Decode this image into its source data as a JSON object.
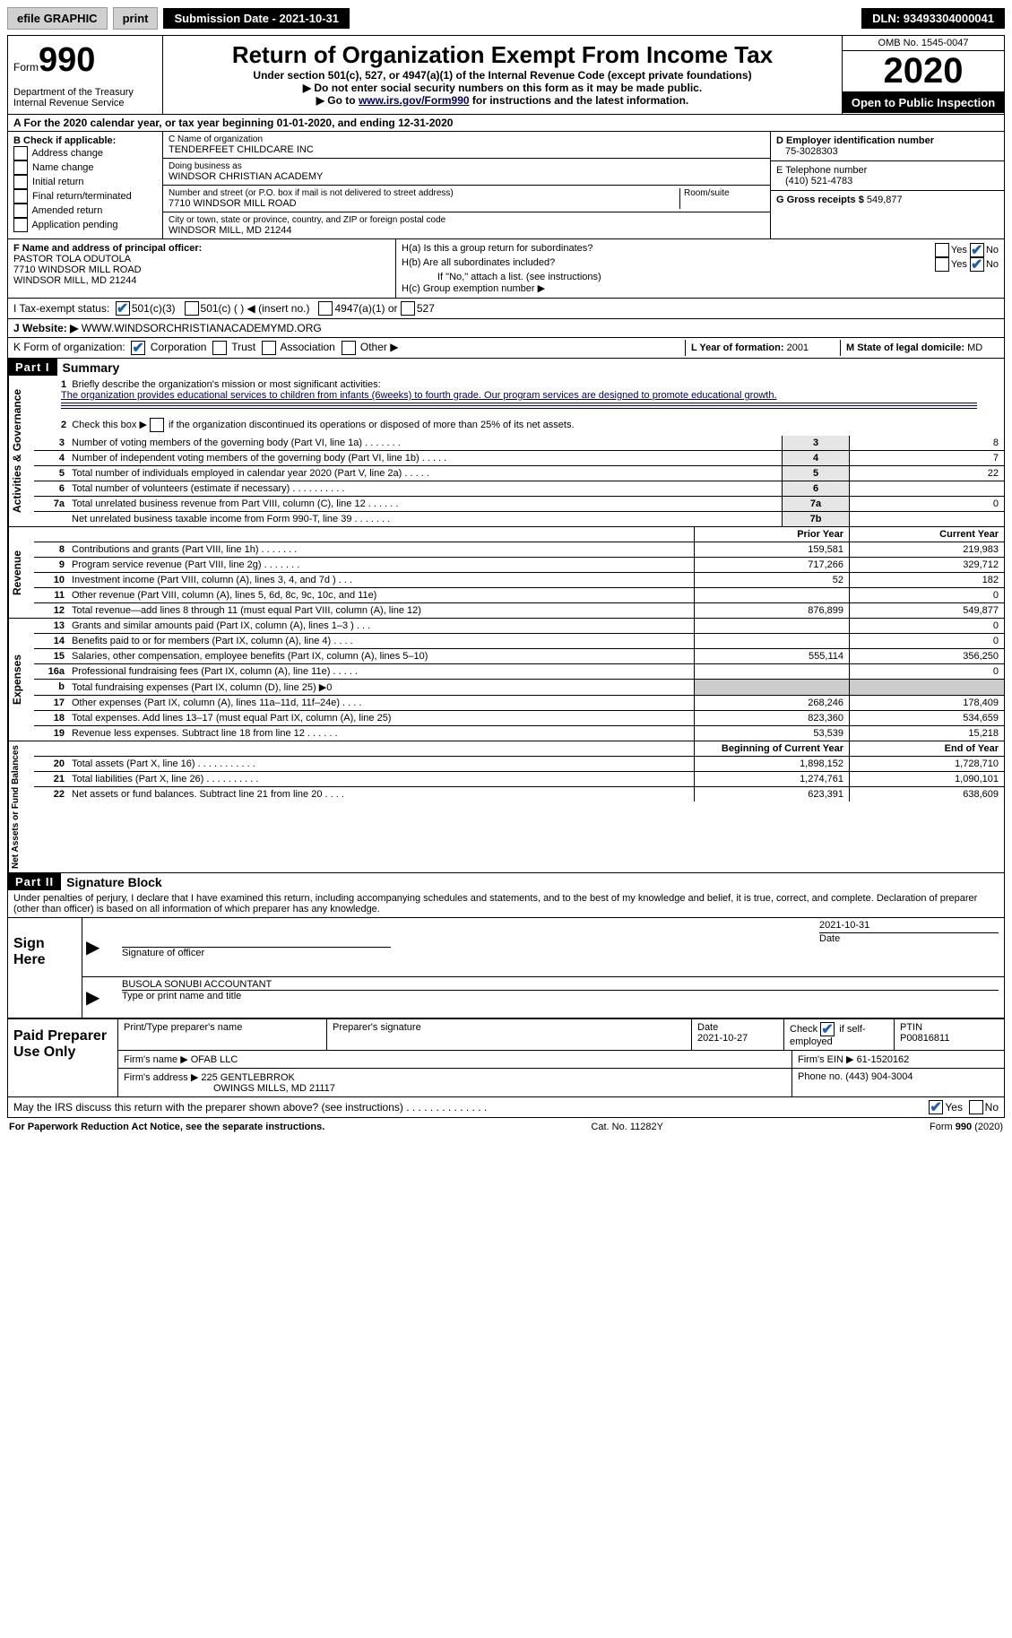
{
  "topbar": {
    "efile": "efile GRAPHIC",
    "print": "print",
    "subdate_label": "Submission Date -",
    "subdate": "2021-10-31",
    "dln_label": "DLN:",
    "dln": "93493304000041"
  },
  "header": {
    "form_prefix": "Form",
    "form": "990",
    "title": "Return of Organization Exempt From Income Tax",
    "sub1": "Under section 501(c), 527, or 4947(a)(1) of the Internal Revenue Code (except private foundations)",
    "sub2": "▶ Do not enter social security numbers on this form as it may be made public.",
    "sub3_pre": "▶ Go to ",
    "sub3_link": "www.irs.gov/Form990",
    "sub3_post": " for instructions and the latest information.",
    "dept": "Department of the Treasury\nInternal Revenue Service",
    "omb_label": "OMB No.",
    "omb": "1545-0047",
    "year": "2020",
    "inspect": "Open to Public Inspection"
  },
  "lineA": {
    "text_pre": "A For the 2020 calendar year, or tax year beginning ",
    "begin": "01-01-2020",
    "mid": ", and ending ",
    "end": "12-31-2020"
  },
  "boxB": {
    "title": "B Check if applicable:",
    "items": [
      "Address change",
      "Name change",
      "Initial return",
      "Final return/terminated",
      "Amended return",
      "Application pending"
    ]
  },
  "boxC": {
    "c_label": "C Name of organization",
    "c_name": "TENDERFEET CHILDCARE INC",
    "dba_label": "Doing business as",
    "dba": "WINDSOR CHRISTIAN ACADEMY",
    "addr_label": "Number and street (or P.O. box if mail is not delivered to street address)",
    "addr": "7710 WINDSOR MILL ROAD",
    "room_label": "Room/suite",
    "city_label": "City or town, state or province, country, and ZIP or foreign postal code",
    "city": "WINDSOR MILL, MD  21244"
  },
  "boxR": {
    "d_label": "D Employer identification number",
    "d": "75-3028303",
    "e_label": "E Telephone number",
    "e": "(410) 521-4783",
    "g_label": "G Gross receipts $",
    "g": "549,877"
  },
  "officer": {
    "f_label": "F  Name and address of principal officer:",
    "name": "PASTOR TOLA ODUTOLA",
    "addr1": "7710 WINDSOR MILL ROAD",
    "addr2": "WINDSOR MILL, MD  21244"
  },
  "h": {
    "a": "H(a)  Is this a group return for subordinates?",
    "a_yes": "Yes",
    "a_no": "No",
    "b": "H(b)  Are all subordinates included?",
    "b_yes": "Yes",
    "b_no": "No",
    "b2": "If \"No,\" attach a list. (see instructions)",
    "c": "H(c)  Group exemption number ▶"
  },
  "iline": {
    "label": "I    Tax-exempt status:",
    "opts": [
      "501(c)(3)",
      "501(c) (   ) ◀ (insert no.)",
      "4947(a)(1) or",
      "527"
    ]
  },
  "jline": {
    "label": "J    Website: ▶",
    "val": "WWW.WINDSORCHRISTIANACADEMYMD.ORG"
  },
  "kline": {
    "label": "K Form of organization:",
    "opts": [
      "Corporation",
      "Trust",
      "Association",
      "Other ▶"
    ]
  },
  "lm": {
    "l_label": "L Year of formation:",
    "l": "2001",
    "m_label": "M State of legal domicile:",
    "m": "MD"
  },
  "part1": {
    "tag": "Part I",
    "title": "Summary"
  },
  "summary": {
    "l1": "Briefly describe the organization's mission or most significant activities:",
    "l1text": "The organization provides educational services to children from infants (6weeks) to fourth grade. Our program services are designed to promote educational growth.",
    "l2": "Check this box ▶      if the organization discontinued its operations or disposed of more than 25% of its net assets.",
    "rows": [
      {
        "n": "3",
        "t": "Number of voting members of the governing body (Part VI, line 1a)   .    .    .    .    .    .    .",
        "c": "3",
        "v": "8"
      },
      {
        "n": "4",
        "t": "Number of independent voting members of the governing body (Part VI, line 1b)   .    .    .    .    .",
        "c": "4",
        "v": "7"
      },
      {
        "n": "5",
        "t": "Total number of individuals employed in calendar year 2020 (Part V, line 2a)   .    .    .    .    .",
        "c": "5",
        "v": "22"
      },
      {
        "n": "6",
        "t": "Total number of volunteers (estimate if necessary)   .    .    .    .    .    .    .    .    .    .",
        "c": "6",
        "v": ""
      },
      {
        "n": "7a",
        "t": "Total unrelated business revenue from Part VIII, column (C), line 12   .    .    .    .    .    .",
        "c": "7a",
        "v": "0"
      },
      {
        "n": "",
        "t": "Net unrelated business taxable income from Form 990-T, line 39   .    .    .    .    .    .    .",
        "c": "7b",
        "v": ""
      }
    ],
    "hdr_prior": "Prior Year",
    "hdr_curr": "Current Year",
    "rev": [
      {
        "n": "8",
        "t": "Contributions and grants (Part VIII, line 1h)   .    .    .    .    .    .    .",
        "p": "159,581",
        "c": "219,983"
      },
      {
        "n": "9",
        "t": "Program service revenue (Part VIII, line 2g)   .    .    .    .    .    .    .",
        "p": "717,266",
        "c": "329,712"
      },
      {
        "n": "10",
        "t": "Investment income (Part VIII, column (A), lines 3, 4, and 7d )   .    .    .",
        "p": "52",
        "c": "182"
      },
      {
        "n": "11",
        "t": "Other revenue (Part VIII, column (A), lines 5, 6d, 8c, 9c, 10c, and 11e)",
        "p": "",
        "c": "0"
      },
      {
        "n": "12",
        "t": "Total revenue—add lines 8 through 11 (must equal Part VIII, column (A), line 12)",
        "p": "876,899",
        "c": "549,877"
      }
    ],
    "exp": [
      {
        "n": "13",
        "t": "Grants and similar amounts paid (Part IX, column (A), lines 1–3 )   .    .    .",
        "p": "",
        "c": "0"
      },
      {
        "n": "14",
        "t": "Benefits paid to or for members (Part IX, column (A), line 4)   .    .    .    .",
        "p": "",
        "c": "0"
      },
      {
        "n": "15",
        "t": "Salaries, other compensation, employee benefits (Part IX, column (A), lines 5–10)",
        "p": "555,114",
        "c": "356,250"
      },
      {
        "n": "16a",
        "t": "Professional fundraising fees (Part IX, column (A), line 11e)   .    .    .    .    .",
        "p": "",
        "c": "0"
      },
      {
        "n": "b",
        "t": "Total fundraising expenses (Part IX, column (D), line 25) ▶0",
        "p": "SHADE",
        "c": "SHADE"
      },
      {
        "n": "17",
        "t": "Other expenses (Part IX, column (A), lines 11a–11d, 11f–24e)   .    .    .    .",
        "p": "268,246",
        "c": "178,409"
      },
      {
        "n": "18",
        "t": "Total expenses. Add lines 13–17 (must equal Part IX, column (A), line 25)",
        "p": "823,360",
        "c": "534,659"
      },
      {
        "n": "19",
        "t": "Revenue less expenses. Subtract line 18 from line 12  .    .    .    .    .    .",
        "p": "53,539",
        "c": "15,218"
      }
    ],
    "hdr_beg": "Beginning of Current Year",
    "hdr_end": "End of Year",
    "net": [
      {
        "n": "20",
        "t": "Total assets (Part X, line 16)   .    .    .    .    .    .    .    .    .    .    .",
        "p": "1,898,152",
        "c": "1,728,710"
      },
      {
        "n": "21",
        "t": "Total liabilities (Part X, line 26)   .    .    .    .    .    .    .    .    .    .",
        "p": "1,274,761",
        "c": "1,090,101"
      },
      {
        "n": "22",
        "t": "Net assets or fund balances. Subtract line 21 from line 20   .    .    .    .",
        "p": "623,391",
        "c": "638,609"
      }
    ],
    "side_gov": "Activities & Governance",
    "side_rev": "Revenue",
    "side_exp": "Expenses",
    "side_net": "Net Assets or Fund Balances"
  },
  "part2": {
    "tag": "Part II",
    "title": "Signature Block"
  },
  "sig": {
    "decl": "Under penalties of perjury, I declare that I have examined this return, including accompanying schedules and statements, and to the best of my knowledge and belief, it is true, correct, and complete. Declaration of preparer (other than officer) is based on all information of which preparer has any knowledge.",
    "sign_here": "Sign Here",
    "sig_of": "Signature of officer",
    "date": "Date",
    "sigdate": "2021-10-31",
    "name": "BUSOLA SONUBI  ACCOUNTANT",
    "type": "Type or print name and title"
  },
  "prep": {
    "label": "Paid Preparer Use Only",
    "h": [
      "Print/Type preparer's name",
      "Preparer's signature",
      "Date",
      "Check ☑ if self-employed",
      "PTIN"
    ],
    "date": "2021-10-27",
    "ptin": "P00816811",
    "firm_label": "Firm's name   ▶",
    "firm": "OFAB LLC",
    "ein_label": "Firm's EIN ▶",
    "ein": "61-1520162",
    "addr_label": "Firm's address ▶",
    "addr": "225 GENTLEBRROK",
    "addr2": "OWINGS MILLS, MD  21117",
    "phone_label": "Phone no.",
    "phone": "(443) 904-3004"
  },
  "discuss": {
    "text": "May the IRS discuss this return with the preparer shown above? (see instructions)   .    .    .    .    .    .    .    .    .    .    .    .    .    .",
    "yes": "Yes",
    "no": "No"
  },
  "foot": {
    "l": "For Paperwork Reduction Act Notice, see the separate instructions.",
    "m": "Cat. No. 11282Y",
    "r": "Form 990 (2020)"
  }
}
